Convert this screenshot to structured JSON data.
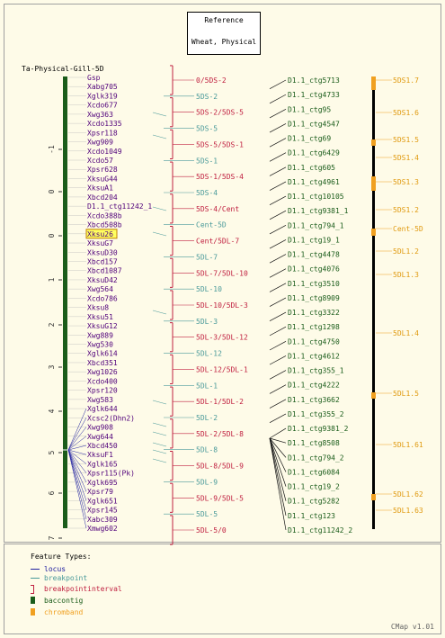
{
  "reference": {
    "line1": "Reference",
    "line2": "Wheat, Physical"
  },
  "map_title": "Ta-Physical-Gill-5D",
  "axis_ticks": [
    "-1",
    "0",
    "0",
    "1",
    "2",
    "3",
    "4",
    "5",
    "6",
    "7"
  ],
  "loci": [
    "Gsp",
    "Xabg705",
    "Xglk319",
    "Xcdo677",
    "Xwg363",
    "Xcdo1335",
    "Xpsr118",
    "Xwg909",
    "Xcdo1049",
    "Xcdo57",
    "Xpsr628",
    "XksuG44",
    "XksuA1",
    "Xbcd204",
    "D1.1_ctg11242_1",
    "Xcdo388b",
    "Xbcd508b",
    "Xksu26",
    "XksuG7",
    "XksuD30",
    "Xbcd157",
    "Xbcd1087",
    "XksuD42",
    "Xwg564",
    "Xcdo786",
    "Xksu8",
    "Xksu51",
    "XksuG12",
    "Xwg889",
    "Xwg530",
    "Xglk614",
    "Xbcd351",
    "Xwg1026",
    "Xcdo400",
    "Xpsr120",
    "Xwg583",
    "Xglk644",
    "Xcsc2(Dhn2)",
    "Xwg908",
    "Xwg644",
    "Xbcd450",
    "XksuF1",
    "Xglk165",
    "Xpsr115(Pk)",
    "Xglk695",
    "Xpsr79",
    "Xglk651",
    "Xpsr145",
    "Xabc309",
    "Xmwg602"
  ],
  "highlighted_locus": "Xksu26",
  "bins": [
    {
      "label": "0/5DS-2",
      "kind": "interval"
    },
    {
      "label": "5DS-2",
      "kind": "point"
    },
    {
      "label": "5DS-2/5DS-5",
      "kind": "interval"
    },
    {
      "label": "5DS-5",
      "kind": "point"
    },
    {
      "label": "5DS-5/5DS-1",
      "kind": "interval"
    },
    {
      "label": "5DS-1",
      "kind": "point"
    },
    {
      "label": "5DS-1/5DS-4",
      "kind": "interval"
    },
    {
      "label": "5DS-4",
      "kind": "point"
    },
    {
      "label": "5DS-4/Cent",
      "kind": "interval"
    },
    {
      "label": "Cent-5D",
      "kind": "point"
    },
    {
      "label": "Cent/5DL-7",
      "kind": "interval"
    },
    {
      "label": "5DL-7",
      "kind": "point"
    },
    {
      "label": "5DL-7/5DL-10",
      "kind": "interval"
    },
    {
      "label": "5DL-10",
      "kind": "point"
    },
    {
      "label": "5DL-10/5DL-3",
      "kind": "interval"
    },
    {
      "label": "5DL-3",
      "kind": "point"
    },
    {
      "label": "5DL-3/5DL-12",
      "kind": "interval"
    },
    {
      "label": "5DL-12",
      "kind": "point"
    },
    {
      "label": "5DL-12/5DL-1",
      "kind": "interval"
    },
    {
      "label": "5DL-1",
      "kind": "point"
    },
    {
      "label": "5DL-1/5DL-2",
      "kind": "interval"
    },
    {
      "label": "5DL-2",
      "kind": "point"
    },
    {
      "label": "5DL-2/5DL-8",
      "kind": "interval"
    },
    {
      "label": "5DL-8",
      "kind": "point"
    },
    {
      "label": "5DL-8/5DL-9",
      "kind": "interval"
    },
    {
      "label": "5DL-9",
      "kind": "point"
    },
    {
      "label": "5DL-9/5DL-5",
      "kind": "interval"
    },
    {
      "label": "5DL-5",
      "kind": "point"
    },
    {
      "label": "5DL-5/0",
      "kind": "interval"
    }
  ],
  "contigs": [
    "D1.1_ctg5713",
    "D1.1_ctg4733",
    "D1.1_ctg95",
    "D1.1_ctg4547",
    "D1.1_ctg69",
    "D1.1_ctg6429",
    "D1.1_ctg605",
    "D1.1_ctg4961",
    "D1.1_ctg10105",
    "D1.1_ctg9381_1",
    "D1.1_ctg794_1",
    "D1.1_ctg19_1",
    "D1.1_ctg4478",
    "D1.1_ctg4076",
    "D1.1_ctg3510",
    "D1.1_ctg8909",
    "D1.1_ctg3322",
    "D1.1_ctg1298",
    "D1.1_ctg4750",
    "D1.1_ctg4612",
    "D1.1_ctg355_1",
    "D1.1_ctg4222",
    "D1.1_ctg3662",
    "D1.1_ctg355_2",
    "D1.1_ctg9381_2",
    "D1.1_ctg8508",
    "D1.1_ctg794_2",
    "D1.1_ctg6084",
    "D1.1_ctg19_2",
    "D1.1_ctg5282",
    "D1.1_ctg123",
    "D1.1_ctg11242_2"
  ],
  "bands": [
    "5DS1.7",
    "5DS1.6",
    "5DS1.5",
    "5DS1.4",
    "5DS1.3",
    "5DS1.2",
    "Cent-5D",
    "5DL1.2",
    "5DL1.3",
    "5DL1.4",
    "5DL1.5",
    "5DL1.61",
    "5DL1.62",
    "5DL1.63"
  ],
  "legend": {
    "title": "Feature Types:",
    "items": [
      {
        "label": "locus",
        "color": "#2020a0"
      },
      {
        "label": "breakpoint",
        "color": "#4a9a9a"
      },
      {
        "label": "breakpointinterval",
        "color": "#c02040"
      },
      {
        "label": "baccontig",
        "color": "#1a5c1a"
      },
      {
        "label": "chromband",
        "color": "#f0a020"
      }
    ]
  },
  "version": "CMap v1.01",
  "colors": {
    "locus_text": "#50007a",
    "breakpoint": "#4a9a9a",
    "interval": "#c02040",
    "contig": "#1a5c1a",
    "band_text": "#e09a10",
    "band_fill": "#f0a020",
    "chromosome": "#1a5c1a"
  }
}
